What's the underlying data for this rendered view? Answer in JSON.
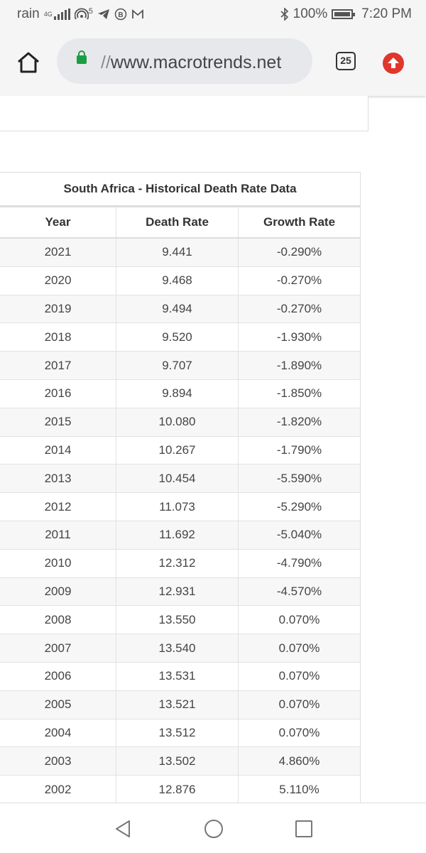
{
  "status_bar": {
    "carrier": "rain",
    "network": "4G",
    "notif_count": "5",
    "battery": "100%",
    "time": "7:20 PM",
    "icons": [
      "signal-icon",
      "hotspot-icon",
      "telegram-icon",
      "b-circle-icon",
      "gmail-icon",
      "bluetooth-icon",
      "battery-icon"
    ]
  },
  "browser": {
    "url_scheme": "//",
    "url_host": "www.macrotrends.net",
    "tab_count": "25",
    "icons": [
      "home-icon",
      "lock-icon",
      "tabs-icon",
      "update-icon"
    ]
  },
  "table": {
    "caption": "South Africa - Historical Death Rate Data",
    "headers": [
      "Year",
      "Death Rate",
      "Growth Rate"
    ],
    "rows": [
      [
        "2021",
        "9.441",
        "-0.290%"
      ],
      [
        "2020",
        "9.468",
        "-0.270%"
      ],
      [
        "2019",
        "9.494",
        "-0.270%"
      ],
      [
        "2018",
        "9.520",
        "-1.930%"
      ],
      [
        "2017",
        "9.707",
        "-1.890%"
      ],
      [
        "2016",
        "9.894",
        "-1.850%"
      ],
      [
        "2015",
        "10.080",
        "-1.820%"
      ],
      [
        "2014",
        "10.267",
        "-1.790%"
      ],
      [
        "2013",
        "10.454",
        "-5.590%"
      ],
      [
        "2012",
        "11.073",
        "-5.290%"
      ],
      [
        "2011",
        "11.692",
        "-5.040%"
      ],
      [
        "2010",
        "12.312",
        "-4.790%"
      ],
      [
        "2009",
        "12.931",
        "-4.570%"
      ],
      [
        "2008",
        "13.550",
        "0.070%"
      ],
      [
        "2007",
        "13.540",
        "0.070%"
      ],
      [
        "2006",
        "13.531",
        "0.070%"
      ],
      [
        "2005",
        "13.521",
        "0.070%"
      ],
      [
        "2004",
        "13.512",
        "0.070%"
      ],
      [
        "2003",
        "13.502",
        "4.860%"
      ],
      [
        "2002",
        "12.876",
        "5.110%"
      ]
    ]
  },
  "nav_bar": {
    "icons": [
      "back-icon",
      "home-circle-icon",
      "recents-icon"
    ]
  },
  "colors": {
    "secure_lock": "#1a9e43",
    "update_badge": "#e0362c",
    "row_stripe": "#f7f7f7"
  }
}
